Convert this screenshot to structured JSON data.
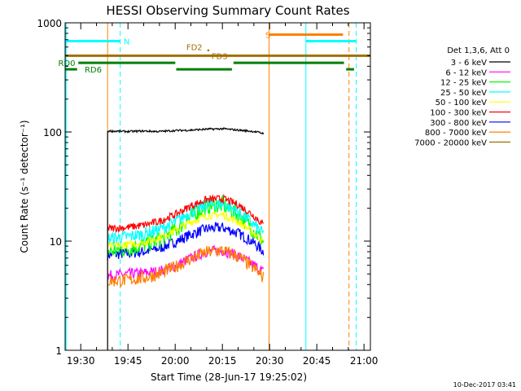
{
  "chart_data": {
    "type": "line",
    "title": "HESSI Observing Summary Count Rates",
    "xlabel": "Start Time (28-Jun-17 19:25:02)",
    "ylabel": "Count Rate (s⁻¹ detector⁻¹)",
    "x_units": "minutes since 19:25:02 (start time)",
    "xlim": [
      0,
      97
    ],
    "ylim": [
      1,
      1000
    ],
    "yscale": "log",
    "grid": false,
    "x_ticks": [
      {
        "value": 4.97,
        "label": "19:30"
      },
      {
        "value": 19.97,
        "label": "19:45"
      },
      {
        "value": 34.97,
        "label": "20:00"
      },
      {
        "value": 49.97,
        "label": "20:15"
      },
      {
        "value": 64.97,
        "label": "20:30"
      },
      {
        "value": 79.97,
        "label": "20:45"
      },
      {
        "value": 94.97,
        "label": "21:00"
      }
    ],
    "y_ticks": [
      {
        "value": 1,
        "label": "1"
      },
      {
        "value": 10,
        "label": "10"
      },
      {
        "value": 100,
        "label": "100"
      },
      {
        "value": 1000,
        "label": "1000"
      }
    ],
    "legend": {
      "placement": "right",
      "header": "Det 1,3,6, Att 0",
      "entries": [
        {
          "label": "3 - 6 keV",
          "color": "#000000"
        },
        {
          "label": "6 - 12 keV",
          "color": "#ff00ff"
        },
        {
          "label": "12 - 25 keV",
          "color": "#00ff00"
        },
        {
          "label": "25 - 50 keV",
          "color": "#00ffff"
        },
        {
          "label": "50 - 100 keV",
          "color": "#ffff00"
        },
        {
          "label": "100 - 300 keV",
          "color": "#ff0000"
        },
        {
          "label": "300 - 800 keV",
          "color": "#0000ff"
        },
        {
          "label": "800 - 7000 keV",
          "color": "#ff8000"
        },
        {
          "label": "7000 - 20000 keV",
          "color": "#a07000"
        }
      ]
    },
    "series": [
      {
        "name": "3 - 6 keV",
        "color": "#000000",
        "x": [
          13.5,
          20,
          25,
          30,
          35,
          40,
          45,
          50,
          55,
          60,
          63
        ],
        "y": [
          102,
          101,
          102,
          101,
          103,
          104,
          106,
          107,
          104,
          101,
          97
        ]
      },
      {
        "name": "6 - 12 keV",
        "color": "#ff00ff",
        "x": [
          13.5,
          20,
          25,
          30,
          35,
          40,
          45,
          50,
          55,
          60,
          63
        ],
        "y": [
          4.8,
          5.0,
          5.1,
          5.3,
          5.9,
          7.0,
          8.0,
          8.2,
          7.3,
          6.0,
          5.2
        ]
      },
      {
        "name": "12 - 25 keV",
        "color": "#00ff00",
        "x": [
          13.5,
          20,
          25,
          30,
          35,
          40,
          45,
          50,
          55,
          60,
          63
        ],
        "y": [
          8.0,
          8.6,
          9.2,
          10.2,
          12.5,
          16.5,
          21.0,
          21.5,
          17.5,
          12.5,
          9.8
        ]
      },
      {
        "name": "25 - 50 keV",
        "color": "#00ffff",
        "x": [
          13.5,
          20,
          25,
          30,
          35,
          40,
          45,
          50,
          55,
          60,
          63
        ],
        "y": [
          10.5,
          11.0,
          11.6,
          12.8,
          15.0,
          18.5,
          21.5,
          22.0,
          18.5,
          14.0,
          11.5
        ]
      },
      {
        "name": "50 - 100 keV",
        "color": "#ffff00",
        "x": [
          13.5,
          20,
          25,
          30,
          35,
          40,
          45,
          50,
          55,
          60,
          63
        ],
        "y": [
          9.0,
          9.3,
          9.8,
          10.8,
          12.5,
          15.0,
          17.0,
          17.5,
          15.0,
          11.8,
          9.8
        ]
      },
      {
        "name": "100 - 300 keV",
        "color": "#ff0000",
        "x": [
          13.5,
          20,
          25,
          30,
          35,
          40,
          45,
          50,
          55,
          60,
          63
        ],
        "y": [
          13.0,
          13.4,
          14.0,
          15.2,
          17.5,
          21.0,
          24.0,
          24.5,
          21.5,
          17.0,
          14.0
        ]
      },
      {
        "name": "300 - 800 keV",
        "color": "#0000ff",
        "x": [
          13.5,
          20,
          25,
          30,
          35,
          40,
          45,
          50,
          55,
          60,
          63
        ],
        "y": [
          7.5,
          7.7,
          8.0,
          8.6,
          9.8,
          11.5,
          13.0,
          13.3,
          11.8,
          9.6,
          8.0
        ]
      },
      {
        "name": "800 - 7000 keV",
        "color": "#ff8000",
        "x": [
          13.5,
          20,
          25,
          30,
          35,
          40,
          45,
          50,
          55,
          60,
          63
        ],
        "y": [
          4.3,
          4.4,
          4.6,
          5.0,
          5.8,
          6.9,
          7.9,
          8.2,
          7.2,
          5.6,
          4.6
        ]
      }
    ],
    "flag_bars": [
      {
        "id": "SAA",
        "label": "S",
        "color": "#ff8000",
        "y": 780,
        "segments": [
          [
            64.8,
            88.3
          ]
        ],
        "label_x": 63.6
      },
      {
        "id": "NIGHT",
        "label": "N",
        "color": "#00ffff",
        "y": 680,
        "segments": [
          [
            0,
            17.5
          ],
          [
            76.5,
            92.5
          ]
        ],
        "label_x": 18.6
      },
      {
        "id": "FD2",
        "label": "FD2",
        "color": "#a07000",
        "y": 500,
        "segments": [
          [
            0,
            97
          ]
        ],
        "label_x": 38.5
      },
      {
        "id": "FD3",
        "label": "FD3",
        "color": "#a07000",
        "y": 500,
        "segments": [],
        "label_x": 46.5
      },
      {
        "id": "RD0",
        "label": "RD0",
        "color": "#008000",
        "y": 430,
        "segments": [
          [
            4.2,
            35.0
          ],
          [
            53.5,
            88.6
          ]
        ],
        "label_x": -2.2
      },
      {
        "id": "RD6",
        "label": "RD6",
        "color": "#008000",
        "y": 375,
        "segments": [
          [
            0,
            3.8
          ],
          [
            35.3,
            53.0
          ],
          [
            89.3,
            91.8
          ]
        ],
        "label_x": 6.2
      }
    ],
    "vertical_markers": [
      {
        "x": 13.5,
        "color": "#ff8000",
        "style": "solid"
      },
      {
        "x": 17.5,
        "color": "#00ffff",
        "style": "dashed"
      },
      {
        "x": 64.8,
        "color": "#ff8000",
        "style": "solid"
      },
      {
        "x": 76.5,
        "color": "#00ffff",
        "style": "solid"
      },
      {
        "x": 90.2,
        "color": "#ff8000",
        "style": "dashed"
      },
      {
        "x": 92.5,
        "color": "#00ffff",
        "style": "dashed"
      }
    ],
    "footer_stamp": "10-Dec-2017 03:41"
  }
}
